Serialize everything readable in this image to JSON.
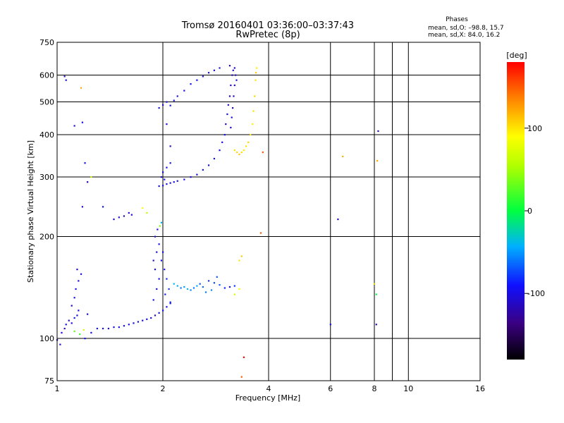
{
  "chart_data": {
    "type": "scatter",
    "title_line1": "Tromsø 20160401 03:36:00–03:37:43",
    "title_line2": "RwPretec (8p)",
    "xlabel": "Frequency [MHz]",
    "ylabel": "Stationary phase Virtual Height [km]",
    "x_scale": "log",
    "y_scale": "log",
    "xlim": [
      1,
      16
    ],
    "ylim": [
      75,
      750
    ],
    "x_ticks": [
      {
        "value": 1,
        "label": "1"
      },
      {
        "value": 2,
        "label": "2"
      },
      {
        "value": 4,
        "label": "4"
      },
      {
        "value": 6,
        "label": "6"
      },
      {
        "value": 8,
        "label": "8"
      },
      {
        "value": 10,
        "label": "10"
      },
      {
        "value": 16,
        "label": "16"
      }
    ],
    "x_grid_extra": [
      9
    ],
    "y_ticks": [
      {
        "value": 75,
        "label": "75"
      },
      {
        "value": 100,
        "label": "100"
      },
      {
        "value": 200,
        "label": "200"
      },
      {
        "value": 300,
        "label": "300"
      },
      {
        "value": 400,
        "label": "400"
      },
      {
        "value": 500,
        "label": "500"
      },
      {
        "value": 600,
        "label": "600"
      },
      {
        "value": 750,
        "label": "750"
      }
    ],
    "grid": true,
    "stats": {
      "heading": "Phases",
      "line_o": "mean, sd,O: –98.8, 15.7",
      "line_x": "mean, sd,X:  84.0, 16.2"
    },
    "colorbar": {
      "label": "[deg]",
      "range": [
        -180,
        180
      ],
      "ticks": [
        {
          "value": 100,
          "label": "100"
        },
        {
          "value": 0,
          "label": "0"
        },
        {
          "value": -100,
          "label": "-100"
        }
      ]
    },
    "points": [
      [
        1.0,
        99,
        -110
      ],
      [
        1.02,
        96,
        -105
      ],
      [
        1.03,
        104,
        -100
      ],
      [
        1.05,
        107,
        -115
      ],
      [
        1.06,
        110,
        -95
      ],
      [
        1.08,
        113,
        -110
      ],
      [
        1.1,
        111,
        -100
      ],
      [
        1.12,
        115,
        -90
      ],
      [
        1.14,
        117,
        -100
      ],
      [
        1.15,
        121,
        -105
      ],
      [
        1.1,
        125,
        -110
      ],
      [
        1.12,
        132,
        -100
      ],
      [
        1.13,
        140,
        -95
      ],
      [
        1.15,
        148,
        -105
      ],
      [
        1.17,
        155,
        -100
      ],
      [
        1.14,
        160,
        -110
      ],
      [
        1.12,
        105,
        30
      ],
      [
        1.16,
        103,
        20
      ],
      [
        1.19,
        106,
        70
      ],
      [
        1.22,
        118,
        -100
      ],
      [
        1.2,
        100,
        -95
      ],
      [
        1.25,
        104,
        -100
      ],
      [
        1.3,
        107,
        -90
      ],
      [
        1.35,
        107,
        -95
      ],
      [
        1.4,
        107,
        -100
      ],
      [
        1.45,
        108,
        -105
      ],
      [
        1.5,
        108,
        -100
      ],
      [
        1.55,
        109,
        -95
      ],
      [
        1.6,
        110,
        -100
      ],
      [
        1.65,
        111,
        -105
      ],
      [
        1.7,
        112,
        -100
      ],
      [
        1.75,
        113,
        -95
      ],
      [
        1.8,
        114,
        -100
      ],
      [
        1.85,
        115,
        -100
      ],
      [
        1.9,
        117,
        -105
      ],
      [
        1.95,
        119,
        -100
      ],
      [
        2.0,
        121,
        -95
      ],
      [
        2.05,
        124,
        -100
      ],
      [
        2.1,
        127,
        -95
      ],
      [
        1.88,
        130,
        -90
      ],
      [
        1.92,
        140,
        -100
      ],
      [
        1.95,
        150,
        -95
      ],
      [
        1.9,
        160,
        -100
      ],
      [
        1.88,
        170,
        -105
      ],
      [
        1.92,
        180,
        -100
      ],
      [
        1.95,
        190,
        -95
      ],
      [
        1.9,
        200,
        -100
      ],
      [
        1.93,
        210,
        -105
      ],
      [
        1.98,
        170,
        -90
      ],
      [
        2.0,
        180,
        -95
      ],
      [
        2.02,
        160,
        -100
      ],
      [
        2.05,
        150,
        -85
      ],
      [
        2.03,
        135,
        -90
      ],
      [
        2.08,
        140,
        -80
      ],
      [
        2.1,
        128,
        -85
      ],
      [
        1.98,
        220,
        -40
      ],
      [
        1.96,
        215,
        40
      ],
      [
        1.8,
        235,
        60
      ],
      [
        1.75,
        243,
        90
      ],
      [
        2.15,
        145,
        -40
      ],
      [
        2.2,
        143,
        -45
      ],
      [
        2.25,
        141,
        -60
      ],
      [
        2.3,
        142,
        -50
      ],
      [
        2.35,
        140,
        -40
      ],
      [
        2.4,
        139,
        -55
      ],
      [
        2.45,
        141,
        -60
      ],
      [
        2.5,
        143,
        -45
      ],
      [
        2.55,
        145,
        -70
      ],
      [
        2.6,
        142,
        -65
      ],
      [
        2.7,
        148,
        -80
      ],
      [
        2.8,
        146,
        -75
      ],
      [
        2.9,
        144,
        -70
      ],
      [
        3.0,
        141,
        -85
      ],
      [
        3.1,
        142,
        -90
      ],
      [
        3.2,
        143,
        -80
      ],
      [
        2.65,
        137,
        -60
      ],
      [
        2.75,
        139,
        -55
      ],
      [
        2.85,
        152,
        -70
      ],
      [
        3.3,
        170,
        100
      ],
      [
        3.35,
        175,
        110
      ],
      [
        3.3,
        140,
        90
      ],
      [
        3.2,
        135,
        70
      ],
      [
        3.4,
        88,
        200
      ],
      [
        3.35,
        77,
        150
      ],
      [
        1.6,
        235,
        -110
      ],
      [
        1.63,
        232,
        -105
      ],
      [
        1.55,
        230,
        -115
      ],
      [
        1.5,
        228,
        -100
      ],
      [
        1.45,
        225,
        -110
      ],
      [
        1.35,
        245,
        -90
      ],
      [
        1.95,
        282,
        -100
      ],
      [
        2.0,
        283,
        -95
      ],
      [
        2.05,
        286,
        -100
      ],
      [
        2.1,
        288,
        -105
      ],
      [
        2.15,
        290,
        -100
      ],
      [
        2.2,
        292,
        -95
      ],
      [
        2.3,
        295,
        -100
      ],
      [
        2.4,
        300,
        -105
      ],
      [
        2.5,
        305,
        -100
      ],
      [
        2.6,
        315,
        -95
      ],
      [
        2.7,
        325,
        -100
      ],
      [
        2.8,
        340,
        -95
      ],
      [
        2.9,
        360,
        -100
      ],
      [
        2.95,
        380,
        -105
      ],
      [
        3.0,
        400,
        -100
      ],
      [
        3.02,
        430,
        -110
      ],
      [
        3.05,
        460,
        -105
      ],
      [
        3.07,
        490,
        -100
      ],
      [
        3.1,
        520,
        -115
      ],
      [
        3.12,
        560,
        -110
      ],
      [
        3.15,
        600,
        -120
      ],
      [
        3.17,
        620,
        -110
      ],
      [
        3.1,
        640,
        -120
      ],
      [
        3.2,
        630,
        -115
      ],
      [
        3.22,
        600,
        -110
      ],
      [
        3.2,
        560,
        -120
      ],
      [
        3.18,
        520,
        -115
      ],
      [
        3.16,
        480,
        -110
      ],
      [
        3.14,
        450,
        -105
      ],
      [
        3.12,
        420,
        -110
      ],
      [
        3.24,
        580,
        -100
      ],
      [
        1.95,
        480,
        -100
      ],
      [
        2.0,
        490,
        -105
      ],
      [
        2.05,
        500,
        -95
      ],
      [
        2.1,
        488,
        -100
      ],
      [
        2.15,
        505,
        -100
      ],
      [
        2.2,
        520,
        -95
      ],
      [
        2.3,
        540,
        -100
      ],
      [
        2.4,
        565,
        -95
      ],
      [
        2.5,
        580,
        -100
      ],
      [
        2.6,
        595,
        -95
      ],
      [
        2.7,
        610,
        -100
      ],
      [
        2.8,
        620,
        -95
      ],
      [
        2.9,
        630,
        -100
      ],
      [
        2.0,
        310,
        -100
      ],
      [
        2.05,
        320,
        -95
      ],
      [
        2.1,
        330,
        -100
      ],
      [
        1.98,
        300,
        -110
      ],
      [
        2.02,
        295,
        -95
      ],
      [
        3.2,
        360,
        100
      ],
      [
        3.25,
        355,
        105
      ],
      [
        3.3,
        350,
        110
      ],
      [
        3.35,
        355,
        100
      ],
      [
        3.4,
        360,
        95
      ],
      [
        3.45,
        370,
        100
      ],
      [
        3.5,
        380,
        105
      ],
      [
        3.55,
        400,
        100
      ],
      [
        3.6,
        430,
        95
      ],
      [
        3.62,
        470,
        100
      ],
      [
        3.65,
        520,
        105
      ],
      [
        3.67,
        580,
        100
      ],
      [
        3.7,
        630,
        95
      ],
      [
        3.68,
        610,
        110
      ],
      [
        1.05,
        595,
        -110
      ],
      [
        1.06,
        580,
        -100
      ],
      [
        1.12,
        425,
        -105
      ],
      [
        1.18,
        435,
        -95
      ],
      [
        1.17,
        550,
        120
      ],
      [
        1.2,
        330,
        -100
      ],
      [
        1.22,
        290,
        -110
      ],
      [
        1.25,
        300,
        70
      ],
      [
        1.18,
        245,
        -110
      ],
      [
        2.05,
        430,
        -100
      ],
      [
        2.1,
        370,
        -110
      ],
      [
        3.8,
        205,
        150
      ],
      [
        3.85,
        355,
        150
      ],
      [
        6.0,
        110,
        -100
      ],
      [
        6.3,
        225,
        -110
      ],
      [
        6.5,
        345,
        120
      ],
      [
        8.0,
        145,
        100
      ],
      [
        8.1,
        135,
        0
      ],
      [
        8.1,
        110,
        -120
      ],
      [
        8.2,
        410,
        -120
      ],
      [
        8.15,
        335,
        120
      ]
    ]
  }
}
